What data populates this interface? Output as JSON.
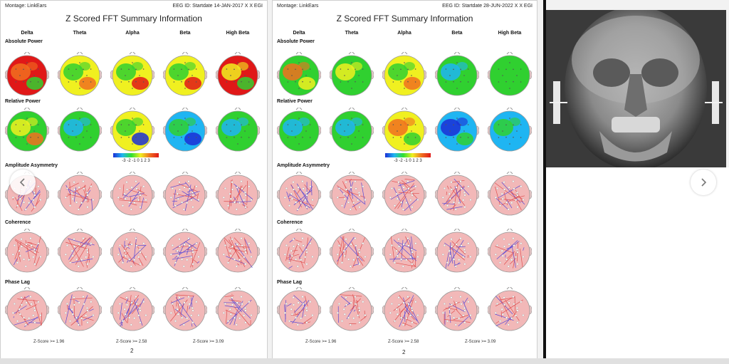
{
  "carousel": {
    "prev_icon": "chevron-left-icon",
    "next_icon": "chevron-right-icon"
  },
  "panels": [
    {
      "montage": "Montage:  LinkEars",
      "eeg_id": "EEG ID:  Startdate 14-JAN-2017 X X EGI",
      "title": "Z Scored FFT Summary Information",
      "page_number": "2"
    },
    {
      "montage": "Montage:  LinkEars",
      "eeg_id": "EEG ID:  Startdate 28-JUN-2022 X X EGI",
      "title": "Z Scored FFT Summary Information",
      "page_number": "2"
    }
  ],
  "bands": [
    "Delta",
    "Theta",
    "Alpha",
    "Beta",
    "High Beta"
  ],
  "rows": [
    "Absolute Power",
    "Relative Power",
    "Amplitude Asymmetry",
    "Coherence",
    "Phase Lag"
  ],
  "colorbar_ticks": "-3 -2 -1  0  1  2  3",
  "scales": [
    "Z-Score >= 1.96",
    "Z-Score >= 2.58",
    "Z-Score >= 3.09"
  ],
  "colors": {
    "zero": "#30d030",
    "pos_high": "#e01818",
    "pos_mid": "#f0f020",
    "neg_mid": "#1fb5f2",
    "neg_high": "#1b2fd6",
    "connectivity_bg": "#f2b8b8"
  }
}
